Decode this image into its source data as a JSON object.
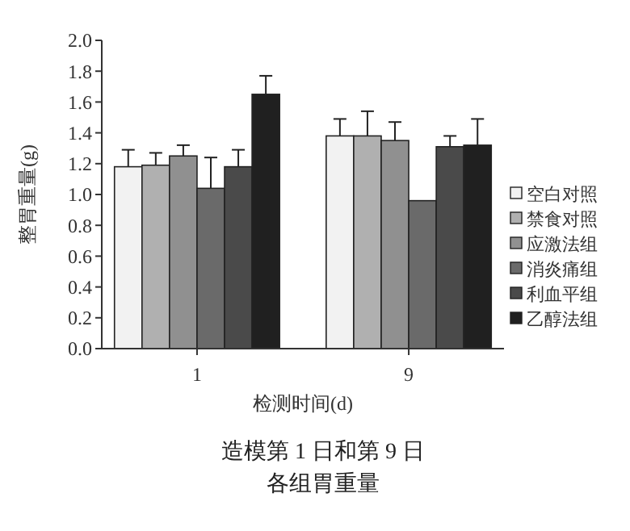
{
  "chart_data": {
    "type": "bar",
    "xlabel": "检测时间(d)",
    "ylabel": "整胃重量(g)",
    "categories": [
      "1",
      "9"
    ],
    "series": [
      {
        "name": "空白对照",
        "color": "#f2f2f2",
        "values": [
          1.18,
          1.38
        ],
        "errors": [
          [
            1.18,
            1.29
          ],
          [
            1.38,
            1.49
          ]
        ]
      },
      {
        "name": "禁食对照",
        "color": "#b0b0b0",
        "values": [
          1.19,
          1.38
        ],
        "errors": [
          [
            1.19,
            1.27
          ],
          [
            1.38,
            1.54
          ]
        ]
      },
      {
        "name": "应激法组",
        "color": "#909090",
        "values": [
          1.25,
          1.35
        ],
        "errors": [
          [
            1.25,
            1.32
          ],
          [
            1.35,
            1.47
          ]
        ]
      },
      {
        "name": "消炎痛组",
        "color": "#6a6a6a",
        "values": [
          1.04,
          0.96
        ],
        "errors": [
          [
            1.04,
            1.24
          ],
          null
        ]
      },
      {
        "name": "利血平组",
        "color": "#4a4a4a",
        "values": [
          1.18,
          1.31
        ],
        "errors": [
          [
            1.18,
            1.29
          ],
          [
            1.31,
            1.38
          ]
        ]
      },
      {
        "name": "乙醇法组",
        "color": "#202020",
        "values": [
          1.65,
          1.32
        ],
        "errors": [
          [
            1.65,
            1.77
          ],
          [
            1.32,
            1.49
          ]
        ]
      }
    ],
    "ylim": [
      0,
      2
    ],
    "yticks": [
      {
        "value": 0,
        "label": "0.0"
      },
      {
        "value": 0.2,
        "label": "0.2"
      },
      {
        "value": 0.4,
        "label": "0.4"
      },
      {
        "value": 0.6,
        "label": "0.6"
      },
      {
        "value": 0.8,
        "label": "0.8"
      },
      {
        "value": 1,
        "label": "1.0"
      },
      {
        "value": 1.2,
        "label": "1.2"
      },
      {
        "value": 1.4,
        "label": "1.4"
      },
      {
        "value": 1.6,
        "label": "1.6"
      },
      {
        "value": 1.8,
        "label": "1.8"
      },
      {
        "value": 2,
        "label": "2.0"
      }
    ],
    "grid": false,
    "legend": "right",
    "annotations": [
      "造模第 1 日和第 9 日",
      "各组胃重量"
    ]
  }
}
